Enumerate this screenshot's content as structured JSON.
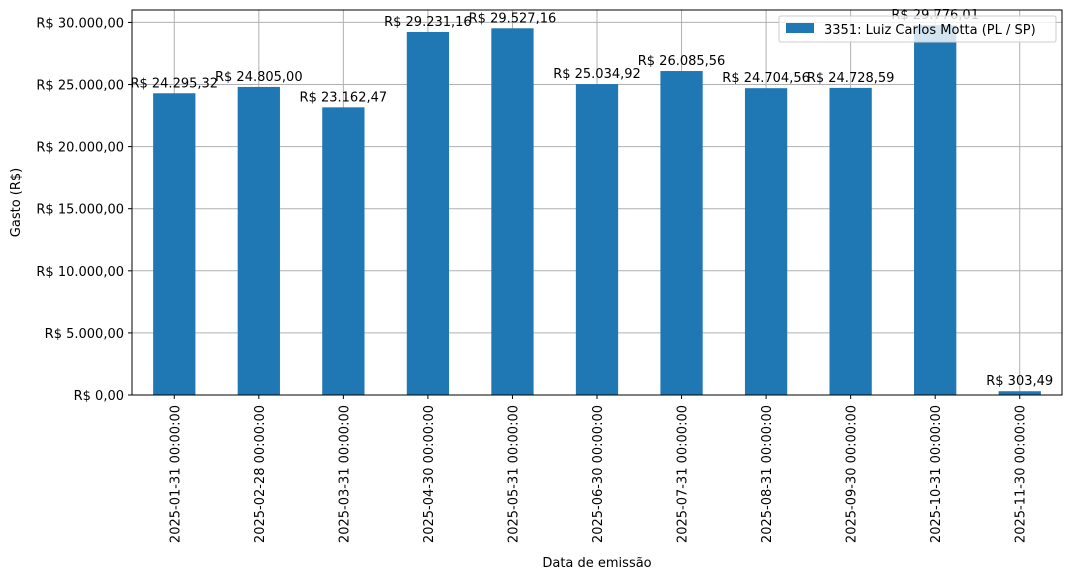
{
  "chart_data": {
    "type": "bar",
    "title": "",
    "xlabel": "Data de emissão",
    "ylabel": "Gasto (R$)",
    "ylim": [
      0,
      31000
    ],
    "grid": true,
    "legend_position": "upper right",
    "categories": [
      "2025-01-31 00:00:00",
      "2025-02-28 00:00:00",
      "2025-03-31 00:00:00",
      "2025-04-30 00:00:00",
      "2025-05-31 00:00:00",
      "2025-06-30 00:00:00",
      "2025-07-31 00:00:00",
      "2025-08-31 00:00:00",
      "2025-09-30 00:00:00",
      "2025-10-31 00:00:00",
      "2025-11-30 00:00:00"
    ],
    "series": [
      {
        "name": "3351: Luiz Carlos Motta (PL / SP)",
        "color": "#1f77b4",
        "values": [
          24295.32,
          24805.0,
          23162.47,
          29231.16,
          29527.16,
          25034.92,
          26085.56,
          24704.56,
          24728.59,
          29776.01,
          303.49
        ],
        "labels": [
          "R$ 24.295,32",
          "R$ 24.805,00",
          "R$ 23.162,47",
          "R$ 29.231,16",
          "R$ 29.527,16",
          "R$ 25.034,92",
          "R$ 26.085,56",
          "R$ 24.704,56",
          "R$ 24.728,59",
          "R$ 29.776,01",
          "R$ 303,49"
        ]
      }
    ],
    "yticks": [
      0,
      5000,
      10000,
      15000,
      20000,
      25000,
      30000
    ],
    "ytick_labels": [
      "R$ 0,00",
      "R$ 5.000,00",
      "R$ 10.000,00",
      "R$ 15.000,00",
      "R$ 20.000,00",
      "R$ 25.000,00",
      "R$ 30.000,00"
    ]
  }
}
